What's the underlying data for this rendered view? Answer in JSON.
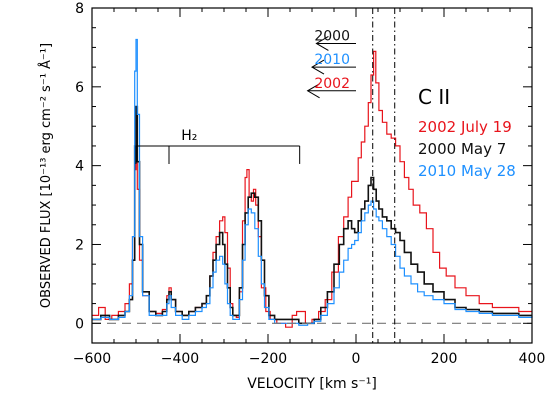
{
  "chart_data": {
    "type": "line",
    "xlabel": "VELOCITY [km s⁻¹]",
    "ylabel": "OBSERVED FLUX [10⁻¹³ erg cm⁻² s⁻¹ Å⁻¹]",
    "xlim": [
      -600,
      400
    ],
    "ylim": [
      -0.5,
      8
    ],
    "x_ticks": [
      -600,
      -400,
      -200,
      0,
      200,
      400
    ],
    "y_ticks": [
      0,
      2,
      4,
      6,
      8
    ],
    "x_tick_labels": [
      "−600",
      "−400",
      "−200",
      "0",
      "200",
      "400"
    ],
    "y_tick_labels": [
      "0",
      "2",
      "4",
      "6",
      "8"
    ],
    "grid": false,
    "legend_position": "right",
    "species_label": "C II",
    "series": [
      {
        "name": "2002 July 19",
        "color": "#e8141c",
        "points": [
          [
            -600,
            0.2
          ],
          [
            -585,
            0.4
          ],
          [
            -570,
            0.1
          ],
          [
            -555,
            0.2
          ],
          [
            -540,
            0.3
          ],
          [
            -525,
            0.5
          ],
          [
            -515,
            1.0
          ],
          [
            -508,
            2.2
          ],
          [
            -503,
            3.9
          ],
          [
            -500,
            4.3
          ],
          [
            -497,
            3.4
          ],
          [
            -492,
            1.6
          ],
          [
            -485,
            0.7
          ],
          [
            -470,
            0.3
          ],
          [
            -455,
            0.25
          ],
          [
            -440,
            0.35
          ],
          [
            -430,
            0.7
          ],
          [
            -425,
            0.9
          ],
          [
            -420,
            0.6
          ],
          [
            -410,
            0.3
          ],
          [
            -395,
            0.2
          ],
          [
            -380,
            0.3
          ],
          [
            -365,
            0.4
          ],
          [
            -350,
            0.5
          ],
          [
            -340,
            0.7
          ],
          [
            -332,
            1.2
          ],
          [
            -325,
            1.8
          ],
          [
            -318,
            2.2
          ],
          [
            -310,
            2.6
          ],
          [
            -303,
            2.7
          ],
          [
            -298,
            2.3
          ],
          [
            -292,
            1.4
          ],
          [
            -286,
            0.5
          ],
          [
            -280,
            0.2
          ],
          [
            -272,
            0.15
          ],
          [
            -265,
            0.8
          ],
          [
            -258,
            2.6
          ],
          [
            -252,
            3.7
          ],
          [
            -248,
            3.9
          ],
          [
            -243,
            3.2
          ],
          [
            -238,
            3.1
          ],
          [
            -233,
            3.4
          ],
          [
            -228,
            3.0
          ],
          [
            -222,
            2.2
          ],
          [
            -215,
            0.9
          ],
          [
            -205,
            0.3
          ],
          [
            -195,
            0.1
          ],
          [
            -180,
            0.0
          ],
          [
            -160,
            -0.1
          ],
          [
            -145,
            0.2
          ],
          [
            -135,
            0.3
          ],
          [
            -125,
            0.3
          ],
          [
            -115,
            0.0
          ],
          [
            -100,
            0.1
          ],
          [
            -85,
            0.3
          ],
          [
            -70,
            0.6
          ],
          [
            -55,
            1.3
          ],
          [
            -40,
            2.2
          ],
          [
            -28,
            2.7
          ],
          [
            -18,
            3.2
          ],
          [
            -10,
            3.6
          ],
          [
            -2,
            3.6
          ],
          [
            5,
            4.2
          ],
          [
            12,
            4.6
          ],
          [
            20,
            5.0
          ],
          [
            28,
            5.6
          ],
          [
            34,
            6.3
          ],
          [
            40,
            6.9
          ],
          [
            45,
            6.1
          ],
          [
            52,
            5.4
          ],
          [
            60,
            5.1
          ],
          [
            70,
            4.8
          ],
          [
            80,
            4.7
          ],
          [
            90,
            4.5
          ],
          [
            100,
            4.1
          ],
          [
            110,
            3.7
          ],
          [
            120,
            3.4
          ],
          [
            130,
            3.0
          ],
          [
            145,
            2.8
          ],
          [
            160,
            2.4
          ],
          [
            175,
            1.8
          ],
          [
            190,
            1.4
          ],
          [
            205,
            1.2
          ],
          [
            225,
            0.9
          ],
          [
            250,
            0.7
          ],
          [
            280,
            0.5
          ],
          [
            310,
            0.4
          ],
          [
            340,
            0.4
          ],
          [
            370,
            0.3
          ],
          [
            400,
            0.3
          ]
        ]
      },
      {
        "name": "2000 May 7",
        "color": "#111111",
        "points": [
          [
            -600,
            0.1
          ],
          [
            -580,
            0.2
          ],
          [
            -560,
            0.1
          ],
          [
            -540,
            0.2
          ],
          [
            -525,
            0.3
          ],
          [
            -515,
            0.6
          ],
          [
            -508,
            1.6
          ],
          [
            -503,
            4.5
          ],
          [
            -500,
            5.5
          ],
          [
            -497,
            4.1
          ],
          [
            -492,
            2.0
          ],
          [
            -485,
            0.8
          ],
          [
            -470,
            0.3
          ],
          [
            -455,
            0.2
          ],
          [
            -440,
            0.3
          ],
          [
            -430,
            0.6
          ],
          [
            -425,
            0.8
          ],
          [
            -420,
            0.6
          ],
          [
            -410,
            0.3
          ],
          [
            -395,
            0.2
          ],
          [
            -380,
            0.3
          ],
          [
            -365,
            0.4
          ],
          [
            -350,
            0.5
          ],
          [
            -340,
            0.7
          ],
          [
            -332,
            1.2
          ],
          [
            -325,
            1.6
          ],
          [
            -318,
            2.0
          ],
          [
            -310,
            2.3
          ],
          [
            -303,
            2.0
          ],
          [
            -298,
            1.5
          ],
          [
            -292,
            0.9
          ],
          [
            -286,
            0.4
          ],
          [
            -280,
            0.2
          ],
          [
            -272,
            0.2
          ],
          [
            -265,
            0.9
          ],
          [
            -258,
            2.0
          ],
          [
            -252,
            2.8
          ],
          [
            -245,
            3.2
          ],
          [
            -238,
            3.3
          ],
          [
            -230,
            3.2
          ],
          [
            -222,
            2.6
          ],
          [
            -215,
            1.6
          ],
          [
            -208,
            0.7
          ],
          [
            -198,
            0.2
          ],
          [
            -185,
            0.1
          ],
          [
            -170,
            0.1
          ],
          [
            -150,
            0.1
          ],
          [
            -130,
            0.0
          ],
          [
            -110,
            0.0
          ],
          [
            -95,
            0.1
          ],
          [
            -80,
            0.4
          ],
          [
            -65,
            0.8
          ],
          [
            -50,
            1.5
          ],
          [
            -38,
            2.0
          ],
          [
            -28,
            2.4
          ],
          [
            -18,
            2.6
          ],
          [
            -10,
            2.4
          ],
          [
            -3,
            2.3
          ],
          [
            5,
            2.6
          ],
          [
            12,
            2.9
          ],
          [
            20,
            3.1
          ],
          [
            28,
            3.5
          ],
          [
            34,
            3.7
          ],
          [
            40,
            3.4
          ],
          [
            46,
            3.1
          ],
          [
            52,
            2.9
          ],
          [
            60,
            2.7
          ],
          [
            70,
            2.6
          ],
          [
            80,
            2.4
          ],
          [
            90,
            2.3
          ],
          [
            100,
            2.1
          ],
          [
            110,
            1.8
          ],
          [
            125,
            1.5
          ],
          [
            140,
            1.3
          ],
          [
            155,
            1.0
          ],
          [
            175,
            0.8
          ],
          [
            200,
            0.6
          ],
          [
            225,
            0.4
          ],
          [
            250,
            0.35
          ],
          [
            280,
            0.3
          ],
          [
            310,
            0.25
          ],
          [
            340,
            0.25
          ],
          [
            370,
            0.2
          ],
          [
            400,
            0.2
          ]
        ]
      },
      {
        "name": "2010 May 28",
        "color": "#1e90ff",
        "points": [
          [
            -600,
            0.1
          ],
          [
            -580,
            0.15
          ],
          [
            -560,
            0.1
          ],
          [
            -540,
            0.15
          ],
          [
            -525,
            0.3
          ],
          [
            -515,
            0.7
          ],
          [
            -508,
            2.2
          ],
          [
            -503,
            6.4
          ],
          [
            -500,
            7.2
          ],
          [
            -497,
            5.3
          ],
          [
            -492,
            2.2
          ],
          [
            -485,
            0.7
          ],
          [
            -470,
            0.2
          ],
          [
            -455,
            0.2
          ],
          [
            -440,
            0.2
          ],
          [
            -430,
            0.5
          ],
          [
            -425,
            0.7
          ],
          [
            -420,
            0.4
          ],
          [
            -410,
            0.2
          ],
          [
            -395,
            0.1
          ],
          [
            -380,
            0.2
          ],
          [
            -365,
            0.3
          ],
          [
            -350,
            0.4
          ],
          [
            -340,
            0.5
          ],
          [
            -332,
            0.9
          ],
          [
            -325,
            1.3
          ],
          [
            -318,
            1.6
          ],
          [
            -310,
            1.7
          ],
          [
            -303,
            1.5
          ],
          [
            -298,
            1.0
          ],
          [
            -292,
            0.5
          ],
          [
            -286,
            0.2
          ],
          [
            -280,
            0.1
          ],
          [
            -272,
            0.1
          ],
          [
            -265,
            0.6
          ],
          [
            -258,
            1.6
          ],
          [
            -252,
            2.5
          ],
          [
            -245,
            2.9
          ],
          [
            -238,
            2.8
          ],
          [
            -230,
            2.4
          ],
          [
            -222,
            1.7
          ],
          [
            -215,
            1.0
          ],
          [
            -208,
            0.4
          ],
          [
            -198,
            0.1
          ],
          [
            -185,
            0.0
          ],
          [
            -170,
            0.0
          ],
          [
            -150,
            0.0
          ],
          [
            -130,
            -0.05
          ],
          [
            -110,
            0.0
          ],
          [
            -95,
            0.05
          ],
          [
            -80,
            0.2
          ],
          [
            -65,
            0.5
          ],
          [
            -50,
            0.9
          ],
          [
            -38,
            1.3
          ],
          [
            -28,
            1.6
          ],
          [
            -18,
            1.9
          ],
          [
            -10,
            2.0
          ],
          [
            -3,
            2.1
          ],
          [
            5,
            2.3
          ],
          [
            12,
            2.6
          ],
          [
            20,
            2.8
          ],
          [
            28,
            3.0
          ],
          [
            34,
            3.1
          ],
          [
            40,
            2.9
          ],
          [
            46,
            2.7
          ],
          [
            52,
            2.6
          ],
          [
            60,
            2.4
          ],
          [
            70,
            2.2
          ],
          [
            80,
            2.0
          ],
          [
            90,
            1.7
          ],
          [
            100,
            1.4
          ],
          [
            110,
            1.2
          ],
          [
            125,
            1.0
          ],
          [
            140,
            0.8
          ],
          [
            155,
            0.7
          ],
          [
            175,
            0.6
          ],
          [
            200,
            0.5
          ],
          [
            225,
            0.35
          ],
          [
            250,
            0.3
          ],
          [
            280,
            0.25
          ],
          [
            310,
            0.2
          ],
          [
            340,
            0.2
          ],
          [
            370,
            0.15
          ],
          [
            400,
            0.2
          ]
        ]
      }
    ],
    "annotations": {
      "h2_label": "H₂",
      "h2_bracket": {
        "y": 4.5,
        "x_start": -500,
        "x_end": -128,
        "ticks": [
          -500,
          -425,
          -128
        ]
      },
      "dashdot_lines": [
        38,
        88
      ],
      "zero_line_y": 0,
      "arrows": [
        {
          "year": "2000",
          "color": "#111111",
          "x_start": 0,
          "x_end": -90,
          "y": 7.1
        },
        {
          "year": "2010",
          "color": "#1e90ff",
          "x_start": 0,
          "x_end": -100,
          "y": 6.5
        },
        {
          "year": "2002",
          "color": "#e8141c",
          "x_start": 0,
          "x_end": -110,
          "y": 5.9
        }
      ]
    }
  }
}
